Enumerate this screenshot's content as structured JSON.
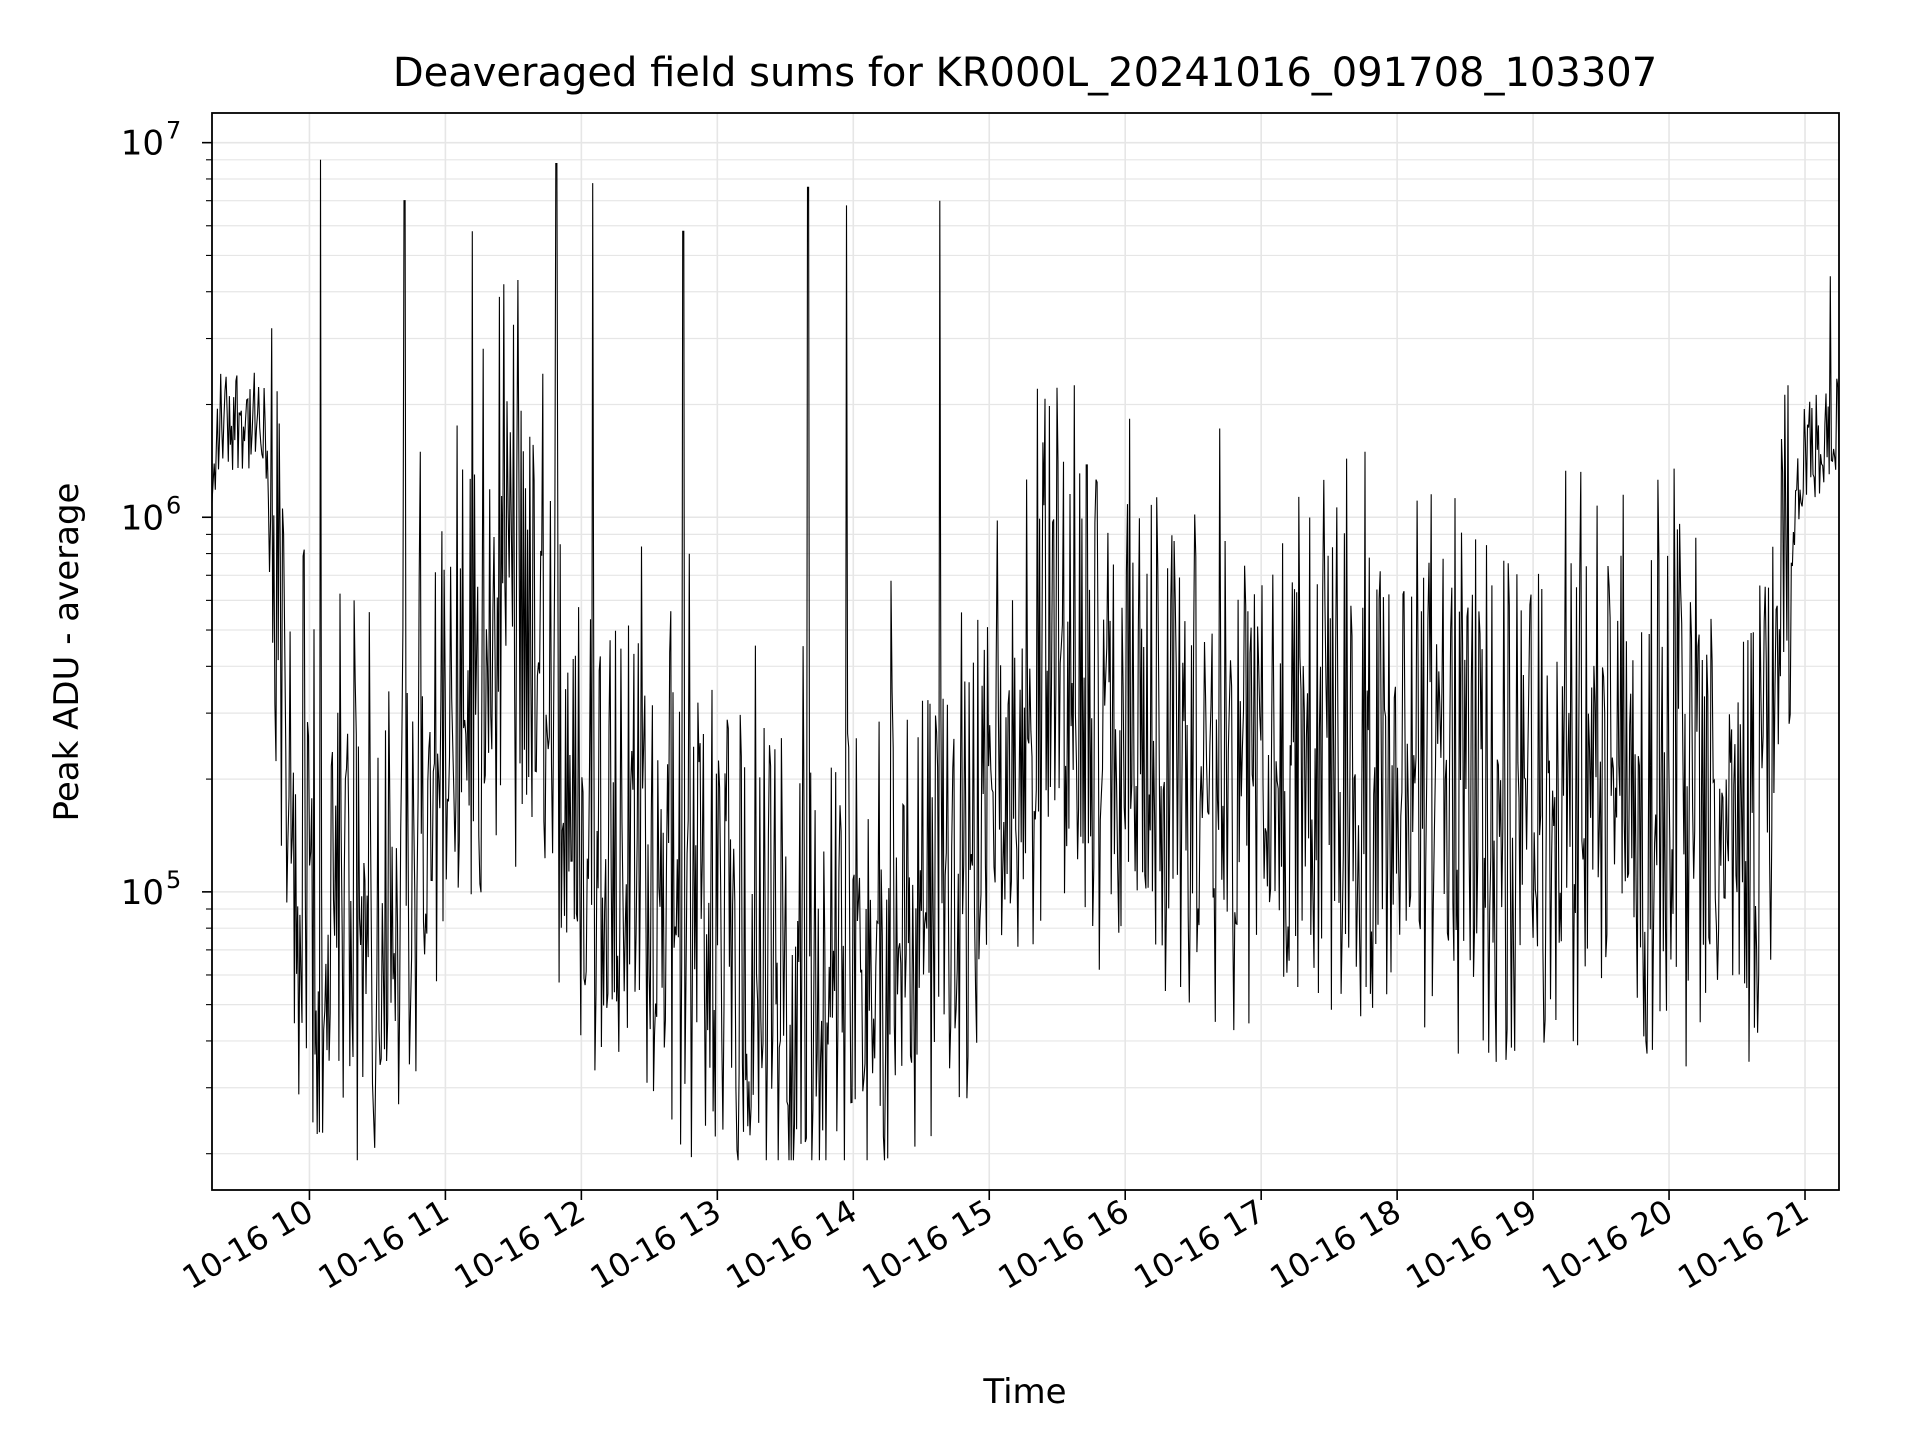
{
  "chart_data": {
    "type": "line",
    "title": "Deaveraged field sums for KR000L_20241016_091708_103307",
    "xlabel": "Time",
    "ylabel": "Peak ADU - average",
    "yscale": "log",
    "grid": true,
    "xlim": [
      "2024-10-16 09:17",
      "2024-10-16 21:15"
    ],
    "ylim": [
      16000,
      12000000
    ],
    "x_tick_labels": [
      "10-16 10",
      "10-16 11",
      "10-16 12",
      "10-16 13",
      "10-16 14",
      "10-16 15",
      "10-16 16",
      "10-16 17",
      "10-16 18",
      "10-16 19",
      "10-16 20",
      "10-16 21"
    ],
    "x_tick_hours": [
      10,
      11,
      12,
      13,
      14,
      15,
      16,
      17,
      18,
      19,
      20,
      21
    ],
    "y_tick_labels": [
      {
        "base": "10",
        "exp": "5",
        "value": 100000
      },
      {
        "base": "10",
        "exp": "6",
        "value": 1000000
      },
      {
        "base": "10",
        "exp": "7",
        "value": 10000000
      }
    ],
    "series": [
      {
        "color": "#000000",
        "anchors": [
          [
            "2024-10-16 09:17",
            1000000
          ],
          [
            "2024-10-16 09:20",
            1800000
          ],
          [
            "2024-10-16 09:30",
            1900000
          ],
          [
            "2024-10-16 09:40",
            1600000
          ],
          [
            "2024-10-16 09:45",
            500000
          ],
          [
            "2024-10-16 09:50",
            150000
          ],
          [
            "2024-10-16 10:00",
            70000
          ],
          [
            "2024-10-16 10:30",
            55000
          ],
          [
            "2024-10-16 11:00",
            200000
          ],
          [
            "2024-10-16 11:30",
            400000
          ],
          [
            "2024-10-16 12:00",
            100000
          ],
          [
            "2024-10-16 13:00",
            60000
          ],
          [
            "2024-10-16 13:45",
            35000
          ],
          [
            "2024-10-16 14:00",
            50000
          ],
          [
            "2024-10-16 14:40",
            65000
          ],
          [
            "2024-10-16 15:00",
            150000
          ],
          [
            "2024-10-16 15:20",
            250000
          ],
          [
            "2024-10-16 16:00",
            200000
          ],
          [
            "2024-10-16 17:00",
            140000
          ],
          [
            "2024-10-16 19:00",
            120000
          ],
          [
            "2024-10-16 20:00",
            130000
          ],
          [
            "2024-10-16 20:40",
            90000
          ],
          [
            "2024-10-16 20:50",
            500000
          ],
          [
            "2024-10-16 21:00",
            1500000
          ],
          [
            "2024-10-16 21:15",
            1700000
          ]
        ],
        "spikes": [
          [
            "2024-10-16 10:05",
            9000000
          ],
          [
            "2024-10-16 10:42",
            7000000
          ],
          [
            "2024-10-16 11:12",
            5800000
          ],
          [
            "2024-10-16 11:32",
            4300000
          ],
          [
            "2024-10-16 11:49",
            8800000
          ],
          [
            "2024-10-16 12:05",
            7800000
          ],
          [
            "2024-10-16 12:45",
            5800000
          ],
          [
            "2024-10-16 13:40",
            7600000
          ],
          [
            "2024-10-16 13:57",
            6800000
          ],
          [
            "2024-10-16 14:38",
            7000000
          ],
          [
            "2024-10-16 15:43",
            1380000
          ],
          [
            "2024-10-16 21:11",
            4400000
          ]
        ]
      }
    ]
  }
}
